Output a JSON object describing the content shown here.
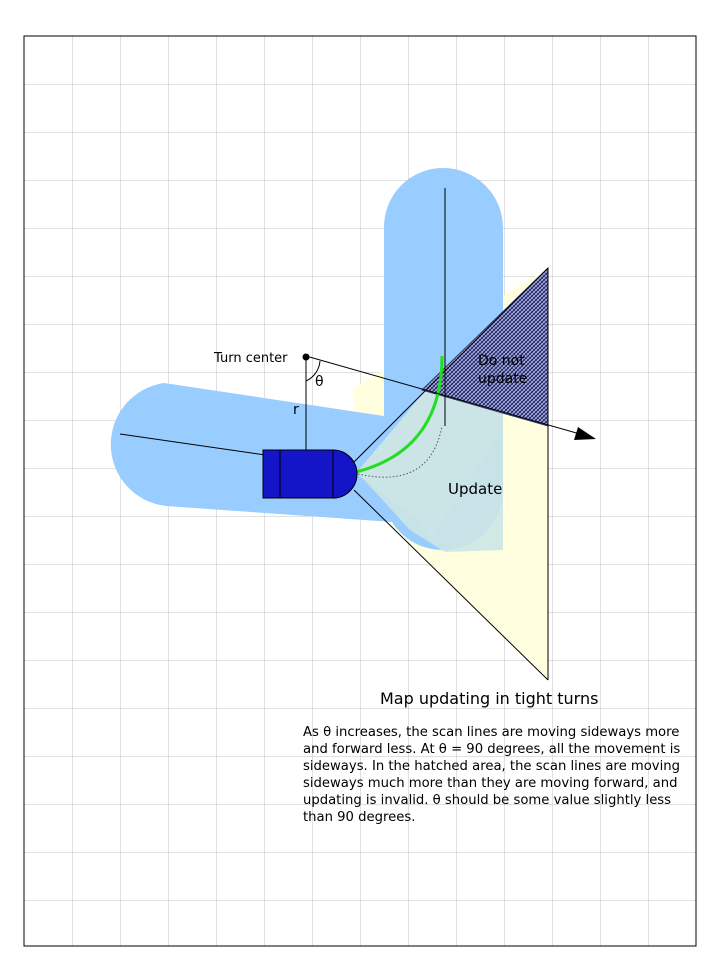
{
  "labels": {
    "turn_center": "Turn center",
    "theta": "θ",
    "radius": "r",
    "do_not_update_line1": "Do not",
    "do_not_update_line2": "update",
    "update": "Update"
  },
  "title": "Map updating in tight turns",
  "caption": "As θ increases, the scan lines are moving sideways more and forward less. At θ = 90 degrees, all the movement is sideways.  In the hatched area, the scan lines are moving sideways much more than they are moving forward, and updating is invalid. θ should be some value slightly less than 90 degrees.",
  "colors": {
    "grid": "#c0c0c0",
    "path": "#99ccff",
    "scan_fan": "#cde6e6",
    "update_region": "#ffffe0",
    "hatch": "#1a1a66",
    "robot": "#1414c8",
    "arc": "#22dd22"
  }
}
